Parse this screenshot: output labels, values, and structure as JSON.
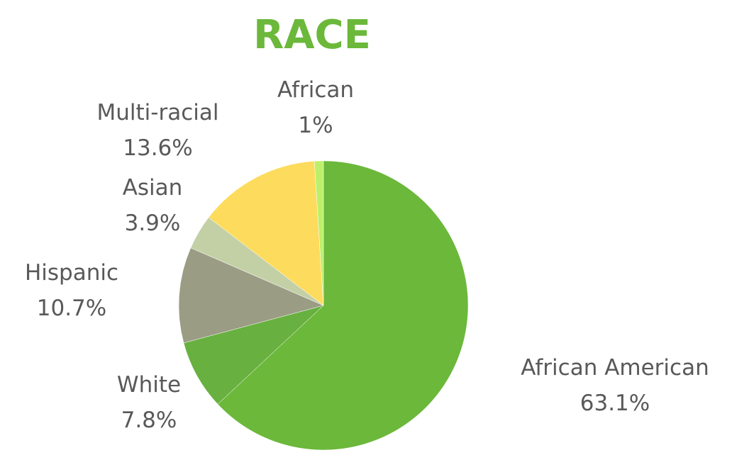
{
  "colors": {
    "title": "#6bb83b",
    "label_text": "#595959",
    "background": "#ffffff",
    "slice_border": "#ffffff"
  },
  "chart_data": {
    "type": "pie",
    "title": "RACE",
    "slices": [
      {
        "label": "African American",
        "value": 63.1,
        "value_label": "63.1%",
        "color": "#6bb83b"
      },
      {
        "label": "White",
        "value": 7.8,
        "value_label": "7.8%",
        "color": "#68b03f"
      },
      {
        "label": "Hispanic",
        "value": 10.7,
        "value_label": "10.7%",
        "color": "#9a9c84"
      },
      {
        "label": "Asian",
        "value": 3.9,
        "value_label": "3.9%",
        "color": "#c3d0a6"
      },
      {
        "label": "Multi-racial",
        "value": 13.6,
        "value_label": "13.6%",
        "color": "#fddb5c"
      },
      {
        "label": "African",
        "value": 1,
        "value_label": "1%",
        "color": "#bdf06a"
      }
    ],
    "start": "12 o'clock",
    "direction": "clockwise",
    "legend": "none",
    "labels": "outside"
  }
}
